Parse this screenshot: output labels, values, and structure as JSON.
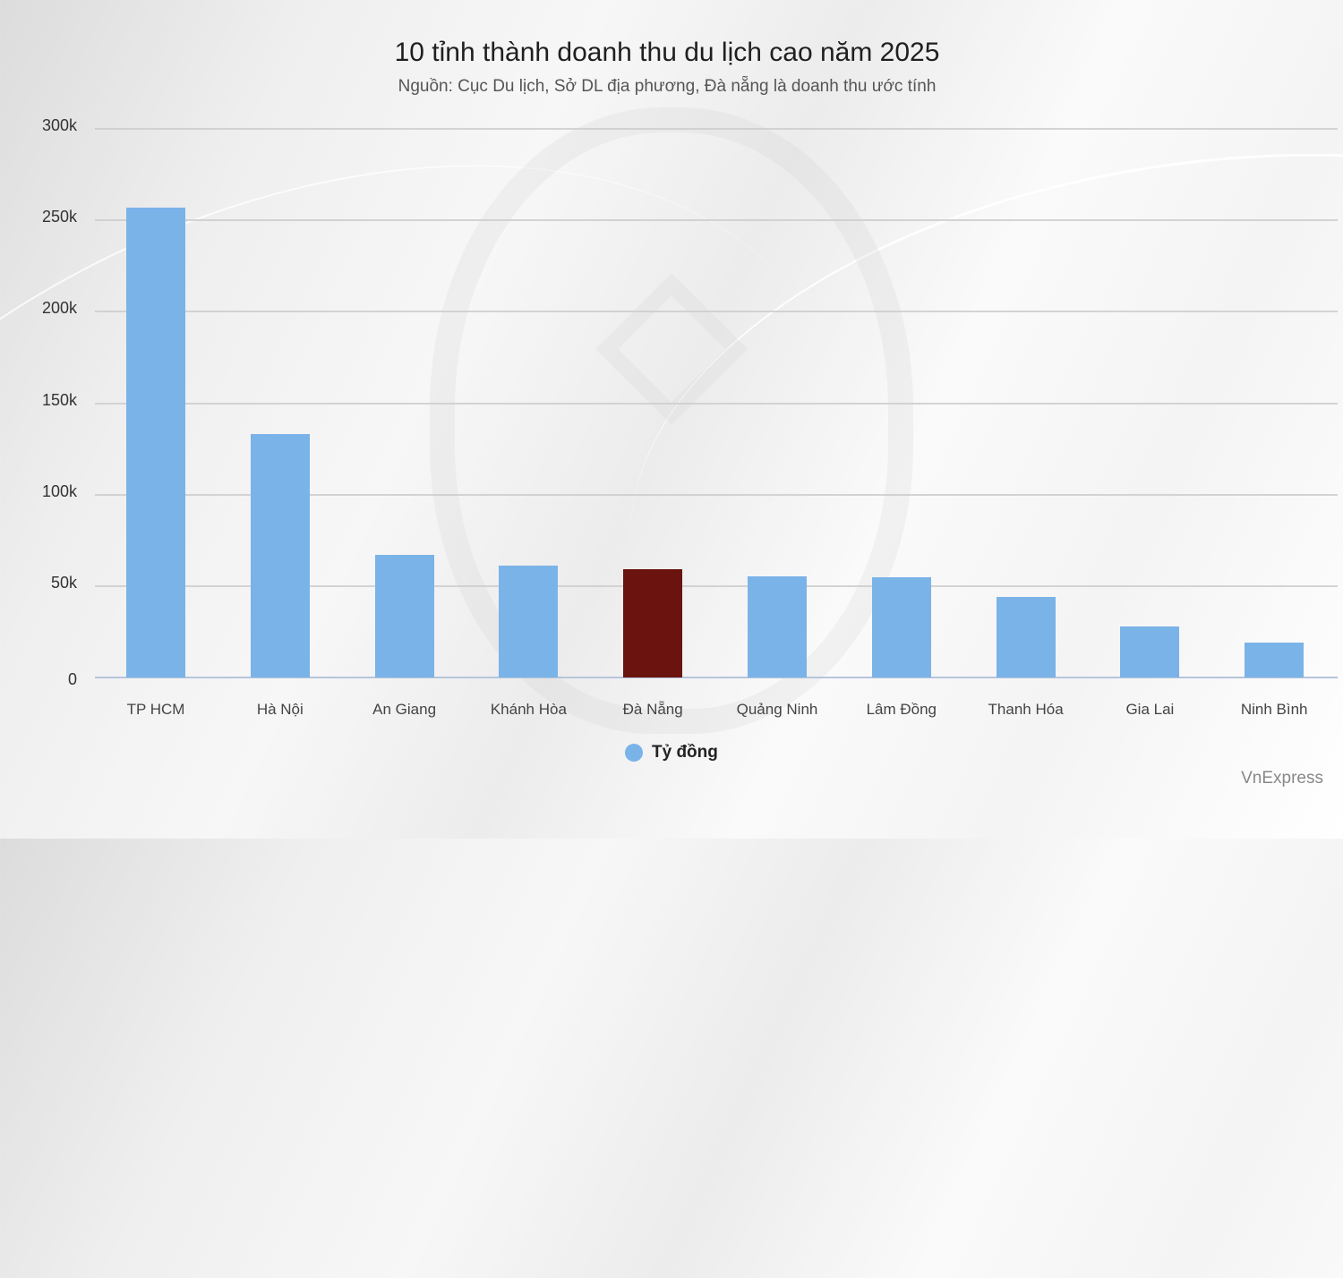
{
  "chart_data": {
    "type": "bar",
    "title": "10 tỉnh thành doanh thu du lịch cao năm 2025",
    "subtitle": "Nguồn: Cục Du lịch, Sở DL địa phương, Đà nẵng là doanh thu ước tính",
    "categories": [
      "TP HCM",
      "Hà Nội",
      "An Giang",
      "Khánh Hòa",
      "Đà Nẵng",
      "Quảng Ninh",
      "Lâm Đồng",
      "Thanh Hóa",
      "Gia Lai",
      "Ninh Bình"
    ],
    "series": [
      {
        "name": "Tỷ đồng",
        "values": [
          257000,
          133000,
          67000,
          61000,
          59000,
          55500,
          55000,
          44000,
          28000,
          19000
        ],
        "color": "#7ab3e8",
        "highlight": {
          "index": 4,
          "color": "#6b130f"
        }
      }
    ],
    "xlabel": "",
    "ylabel": "",
    "ylim": [
      0,
      300000
    ],
    "yticks": [
      "0",
      "50k",
      "100k",
      "150k",
      "200k",
      "250k",
      "300k"
    ],
    "grid": true,
    "legend_position": "bottom-center"
  },
  "credit": "VnExpress"
}
